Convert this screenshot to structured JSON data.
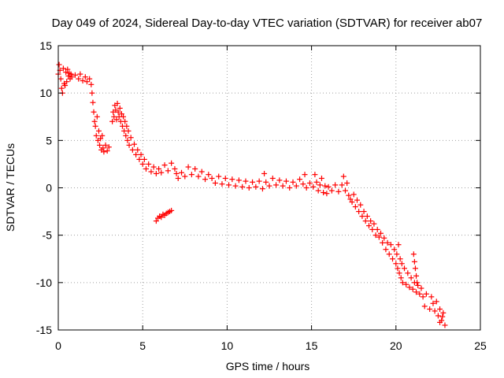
{
  "chart_data": {
    "type": "scatter",
    "title": "Day 049 of 2024, Sidereal Day-to-day VTEC variation (SDTVAR) for receiver ab07",
    "xlabel": "GPS time / hours",
    "ylabel": "SDTVAR / TECUs",
    "xlim": [
      0,
      25
    ],
    "ylim": [
      -15,
      15
    ],
    "xticks": [
      0,
      5,
      10,
      15,
      20,
      25
    ],
    "yticks": [
      -15,
      -10,
      -5,
      0,
      5,
      10,
      15
    ],
    "xtick_labels": [
      "0",
      "5",
      "10",
      "15",
      "20",
      "25"
    ],
    "ytick_labels": [
      "-15",
      "-10",
      "-5",
      "0",
      "5",
      "10",
      "15"
    ],
    "grid": true,
    "marker": "+",
    "color": "#ff0000",
    "series": [
      {
        "name": "SDTVAR",
        "points": [
          [
            0.0,
            12.0
          ],
          [
            0.05,
            13.0
          ],
          [
            0.1,
            12.4
          ],
          [
            0.15,
            11.5
          ],
          [
            0.2,
            10.5
          ],
          [
            0.25,
            10.0
          ],
          [
            0.3,
            12.6
          ],
          [
            0.35,
            11.0
          ],
          [
            0.4,
            10.8
          ],
          [
            0.45,
            12.2
          ],
          [
            0.5,
            11.2
          ],
          [
            0.55,
            12.5
          ],
          [
            0.6,
            11.8
          ],
          [
            0.65,
            12.1
          ],
          [
            0.7,
            11.5
          ],
          [
            0.75,
            12.0
          ],
          [
            0.8,
            11.7
          ],
          [
            1.0,
            11.9
          ],
          [
            1.2,
            11.5
          ],
          [
            1.3,
            12.0
          ],
          [
            1.45,
            11.3
          ],
          [
            1.6,
            11.7
          ],
          [
            1.7,
            11.2
          ],
          [
            1.85,
            11.5
          ],
          [
            1.95,
            10.9
          ],
          [
            2.0,
            10.0
          ],
          [
            2.05,
            9.0
          ],
          [
            2.1,
            8.0
          ],
          [
            2.15,
            7.0
          ],
          [
            2.2,
            6.5
          ],
          [
            2.25,
            5.5
          ],
          [
            2.3,
            7.5
          ],
          [
            2.35,
            5.0
          ],
          [
            2.4,
            6.0
          ],
          [
            2.45,
            4.5
          ],
          [
            2.5,
            5.2
          ],
          [
            2.55,
            4.0
          ],
          [
            2.6,
            5.5
          ],
          [
            2.65,
            4.2
          ],
          [
            2.7,
            3.8
          ],
          [
            2.8,
            4.5
          ],
          [
            2.9,
            3.9
          ],
          [
            3.0,
            4.3
          ],
          [
            3.2,
            7.0
          ],
          [
            3.25,
            8.0
          ],
          [
            3.3,
            7.5
          ],
          [
            3.35,
            8.7
          ],
          [
            3.4,
            8.2
          ],
          [
            3.45,
            7.2
          ],
          [
            3.5,
            8.9
          ],
          [
            3.55,
            8.0
          ],
          [
            3.6,
            7.5
          ],
          [
            3.65,
            8.4
          ],
          [
            3.7,
            7.0
          ],
          [
            3.75,
            7.8
          ],
          [
            3.8,
            6.5
          ],
          [
            3.85,
            7.5
          ],
          [
            3.9,
            6.0
          ],
          [
            3.95,
            7.0
          ],
          [
            4.0,
            5.5
          ],
          [
            4.05,
            6.5
          ],
          [
            4.1,
            5.0
          ],
          [
            4.15,
            6.0
          ],
          [
            4.2,
            4.5
          ],
          [
            4.3,
            5.3
          ],
          [
            4.4,
            4.0
          ],
          [
            4.5,
            4.6
          ],
          [
            4.6,
            3.5
          ],
          [
            4.7,
            4.0
          ],
          [
            4.8,
            3.0
          ],
          [
            4.9,
            3.5
          ],
          [
            5.0,
            2.5
          ],
          [
            5.1,
            3.0
          ],
          [
            5.2,
            2.0
          ],
          [
            5.35,
            2.5
          ],
          [
            5.5,
            1.7
          ],
          [
            5.65,
            2.2
          ],
          [
            5.8,
            1.5
          ],
          [
            5.95,
            2.0
          ],
          [
            6.1,
            1.6
          ],
          [
            6.3,
            2.4
          ],
          [
            6.5,
            1.8
          ],
          [
            6.7,
            2.6
          ],
          [
            6.9,
            2.0
          ],
          [
            7.0,
            1.5
          ],
          [
            7.1,
            1.0
          ],
          [
            7.3,
            1.6
          ],
          [
            7.5,
            1.2
          ],
          [
            7.7,
            2.2
          ],
          [
            7.9,
            1.4
          ],
          [
            8.1,
            2.0
          ],
          [
            8.3,
            1.2
          ],
          [
            8.5,
            1.7
          ],
          [
            8.7,
            0.9
          ],
          [
            8.9,
            1.4
          ],
          [
            9.1,
            1.0
          ],
          [
            9.3,
            0.5
          ],
          [
            9.5,
            1.2
          ],
          [
            9.7,
            0.4
          ],
          [
            9.9,
            1.0
          ],
          [
            10.1,
            0.3
          ],
          [
            10.3,
            0.9
          ],
          [
            10.5,
            0.2
          ],
          [
            10.7,
            0.8
          ],
          [
            10.9,
            0.1
          ],
          [
            11.1,
            0.7
          ],
          [
            11.3,
            0.0
          ],
          [
            11.5,
            0.6
          ],
          [
            11.7,
            0.1
          ],
          [
            11.9,
            0.7
          ],
          [
            12.1,
            -0.1
          ],
          [
            12.2,
            1.5
          ],
          [
            12.3,
            0.6
          ],
          [
            12.5,
            0.2
          ],
          [
            12.7,
            1.0
          ],
          [
            12.9,
            0.3
          ],
          [
            13.1,
            0.8
          ],
          [
            13.3,
            0.2
          ],
          [
            13.5,
            0.7
          ],
          [
            13.7,
            0.0
          ],
          [
            13.9,
            0.6
          ],
          [
            14.1,
            0.2
          ],
          [
            14.3,
            0.9
          ],
          [
            14.5,
            0.4
          ],
          [
            14.6,
            1.4
          ],
          [
            14.7,
            0.0
          ],
          [
            14.9,
            0.5
          ],
          [
            15.1,
            0.1
          ],
          [
            15.2,
            1.4
          ],
          [
            15.3,
            0.6
          ],
          [
            15.4,
            -0.3
          ],
          [
            15.5,
            0.3
          ],
          [
            15.6,
            1.0
          ],
          [
            15.7,
            -0.5
          ],
          [
            15.8,
            0.2
          ],
          [
            15.9,
            -0.6
          ],
          [
            16.0,
            0.1
          ],
          [
            16.2,
            -0.3
          ],
          [
            16.4,
            0.3
          ],
          [
            16.6,
            -0.4
          ],
          [
            16.8,
            0.3
          ],
          [
            16.9,
            1.2
          ],
          [
            17.0,
            -0.3
          ],
          [
            17.1,
            0.5
          ],
          [
            17.2,
            -0.8
          ],
          [
            17.3,
            -1.2
          ],
          [
            17.4,
            -1.5
          ],
          [
            17.5,
            -0.7
          ],
          [
            17.6,
            -2.0
          ],
          [
            17.7,
            -1.3
          ],
          [
            17.8,
            -2.5
          ],
          [
            17.9,
            -1.8
          ],
          [
            18.0,
            -3.0
          ],
          [
            18.1,
            -2.5
          ],
          [
            18.2,
            -3.5
          ],
          [
            18.3,
            -3.0
          ],
          [
            18.4,
            -4.0
          ],
          [
            18.5,
            -3.5
          ],
          [
            18.6,
            -4.4
          ],
          [
            18.7,
            -3.8
          ],
          [
            18.8,
            -5.0
          ],
          [
            18.9,
            -4.4
          ],
          [
            19.0,
            -5.2
          ],
          [
            19.1,
            -4.8
          ],
          [
            19.2,
            -5.8
          ],
          [
            19.3,
            -5.3
          ],
          [
            19.4,
            -6.5
          ],
          [
            19.5,
            -5.8
          ],
          [
            19.6,
            -7.0
          ],
          [
            19.7,
            -6.0
          ],
          [
            19.8,
            -7.5
          ],
          [
            19.9,
            -6.5
          ],
          [
            20.0,
            -8.0
          ],
          [
            20.05,
            -7.0
          ],
          [
            20.1,
            -8.5
          ],
          [
            20.15,
            -6.0
          ],
          [
            20.2,
            -9.0
          ],
          [
            20.25,
            -7.5
          ],
          [
            20.3,
            -9.5
          ],
          [
            20.35,
            -8.0
          ],
          [
            20.4,
            -10.0
          ],
          [
            20.5,
            -8.5
          ],
          [
            20.6,
            -10.2
          ],
          [
            20.7,
            -9.0
          ],
          [
            20.8,
            -10.5
          ],
          [
            20.9,
            -9.5
          ],
          [
            21.0,
            -10.7
          ],
          [
            21.1,
            -10.0
          ],
          [
            21.2,
            -11.0
          ],
          [
            21.3,
            -10.3
          ],
          [
            21.4,
            -11.2
          ],
          [
            21.5,
            -10.6
          ],
          [
            21.6,
            -11.5
          ],
          [
            21.05,
            -7.0
          ],
          [
            21.1,
            -7.8
          ],
          [
            21.15,
            -8.5
          ],
          [
            21.2,
            -9.3
          ],
          [
            21.25,
            -10.0
          ],
          [
            21.7,
            -12.5
          ],
          [
            21.8,
            -11.2
          ],
          [
            22.0,
            -12.8
          ],
          [
            22.1,
            -11.5
          ],
          [
            22.2,
            -12.2
          ],
          [
            22.3,
            -13.0
          ],
          [
            22.4,
            -12.0
          ],
          [
            22.5,
            -13.5
          ],
          [
            22.6,
            -12.8
          ],
          [
            22.7,
            -14.0
          ],
          [
            22.8,
            -13.2
          ],
          [
            22.9,
            -14.5
          ],
          [
            22.6,
            -14.2
          ],
          [
            22.75,
            -13.6
          ],
          [
            5.8,
            -3.5
          ],
          [
            5.9,
            -3.2
          ],
          [
            6.0,
            -3.0
          ],
          [
            6.1,
            -3.1
          ],
          [
            6.2,
            -2.8
          ],
          [
            6.3,
            -2.9
          ],
          [
            6.4,
            -2.7
          ],
          [
            6.5,
            -2.6
          ],
          [
            6.6,
            -2.5
          ],
          [
            6.7,
            -2.4
          ]
        ]
      }
    ]
  }
}
